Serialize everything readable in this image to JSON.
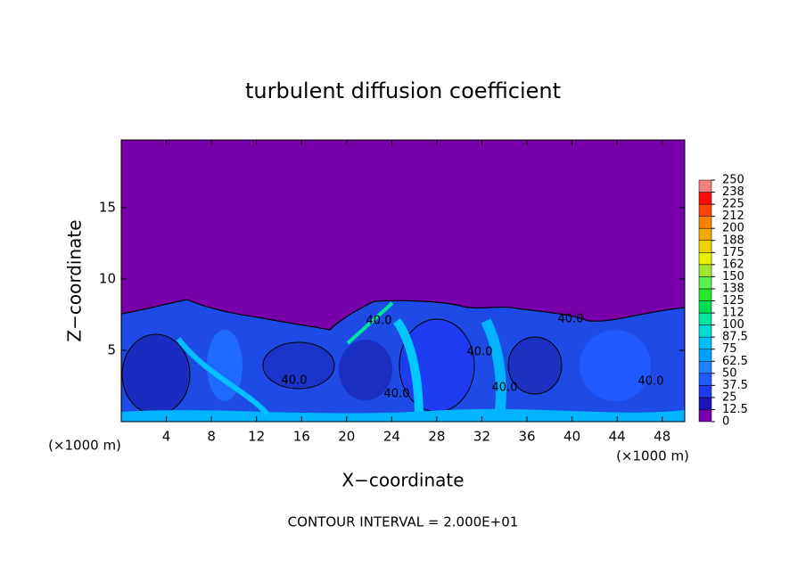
{
  "chart_data": {
    "type": "contour",
    "title": "turbulent diffusion coefficient",
    "xlabel": "X−coordinate",
    "ylabel": "Z−coordinate",
    "x_unit": "(×1000 m)",
    "note": "CONTOUR INTERVAL = 2.000E+01",
    "xlim": [
      0,
      50
    ],
    "ylim": [
      0,
      19.75
    ],
    "xticks": [
      4,
      8,
      12,
      16,
      20,
      24,
      28,
      32,
      36,
      40,
      44,
      48
    ],
    "yticks": [
      5,
      10,
      15
    ],
    "contour_labels": [
      "40.0",
      "40.0",
      "40.0",
      "40.0",
      "40.0",
      "40.0",
      "40.0"
    ],
    "levels": [
      0,
      12.5,
      25,
      37.5,
      50,
      62.5,
      75,
      87.5,
      100,
      112,
      125,
      138,
      150,
      162,
      175,
      188,
      200,
      212,
      225,
      238,
      250
    ],
    "colors": [
      "#7800a8",
      "#1c14b4",
      "#1e3cf0",
      "#1e5aff",
      "#1e82ff",
      "#00a0ff",
      "#00c0ff",
      "#00dcd2",
      "#00e6a0",
      "#00dc50",
      "#28e628",
      "#5af050",
      "#a0e632",
      "#e6f000",
      "#f0d200",
      "#f0aa00",
      "#fa8200",
      "#ff4600",
      "#ff0a0a",
      "#f08080"
    ]
  }
}
